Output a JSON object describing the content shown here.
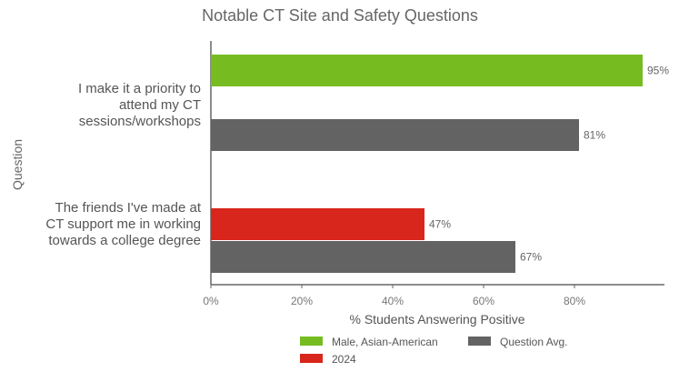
{
  "chart_data": {
    "type": "bar",
    "orientation": "horizontal",
    "title": "Notable CT Site and Safety Questions",
    "xlabel": "% Students Answering Positive",
    "ylabel": "Question",
    "xlim": [
      0,
      100
    ],
    "x_ticks": [
      0,
      20,
      40,
      60,
      80
    ],
    "x_tick_labels": [
      "0%",
      "20%",
      "40%",
      "60%",
      "80%"
    ],
    "grid": false,
    "legend_position": "bottom",
    "categories": [
      {
        "label_lines": [
          "I make it a priority to",
          "attend my CT",
          "sessions/workshops"
        ],
        "bars": [
          {
            "series": "Male, Asian-American",
            "value": 95,
            "label": "95%",
            "color": "#76bc21"
          },
          {
            "series": "Question Avg.",
            "value": 81,
            "label": "81%",
            "color": "#636363"
          }
        ]
      },
      {
        "label_lines": [
          "The friends I've made at",
          "CT support me in working",
          "towards a college degree"
        ],
        "bars": [
          {
            "series": "2024",
            "value": 47,
            "label": "47%",
            "color": "#d9261c"
          },
          {
            "series": "Question Avg.",
            "value": 67,
            "label": "67%",
            "color": "#636363"
          }
        ]
      }
    ],
    "legend": [
      {
        "name": "Male, Asian-American",
        "color": "#76bc21"
      },
      {
        "name": "Question Avg.",
        "color": "#636363"
      },
      {
        "name": "2024",
        "color": "#d9261c"
      }
    ]
  }
}
